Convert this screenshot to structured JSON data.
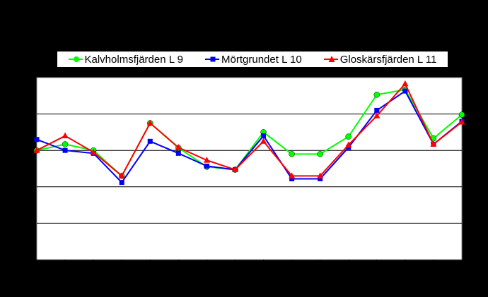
{
  "chart_data": {
    "type": "line",
    "title": "",
    "xlabel": "",
    "ylabel": "",
    "ylim": [
      0,
      5
    ],
    "grid": true,
    "legend_position": "top",
    "x": [
      1,
      2,
      3,
      4,
      5,
      6,
      7,
      8,
      9,
      10,
      11,
      12,
      13,
      14,
      15,
      16
    ],
    "series": [
      {
        "name": "Kalvholmsfjärden L 9",
        "color": "#00ff00",
        "marker": "circle",
        "values": [
          3.0,
          3.17,
          3.0,
          2.3,
          3.75,
          3.07,
          2.55,
          2.47,
          3.5,
          2.9,
          2.9,
          3.38,
          4.53,
          4.67,
          3.33,
          3.98
        ]
      },
      {
        "name": "Mörtgrundet L 10",
        "color": "#0000ff",
        "marker": "square",
        "values": [
          3.3,
          3.0,
          2.92,
          2.12,
          3.25,
          2.92,
          2.57,
          2.47,
          3.4,
          2.22,
          2.22,
          3.08,
          4.1,
          4.63,
          3.17,
          3.8
        ]
      },
      {
        "name": "Gloskärsfjärden L 11",
        "color": "#ff0000",
        "marker": "triangle",
        "values": [
          3.0,
          3.4,
          2.95,
          2.3,
          3.75,
          3.08,
          2.73,
          2.47,
          3.25,
          2.3,
          2.3,
          3.15,
          3.95,
          4.83,
          3.17,
          3.78
        ]
      }
    ]
  }
}
